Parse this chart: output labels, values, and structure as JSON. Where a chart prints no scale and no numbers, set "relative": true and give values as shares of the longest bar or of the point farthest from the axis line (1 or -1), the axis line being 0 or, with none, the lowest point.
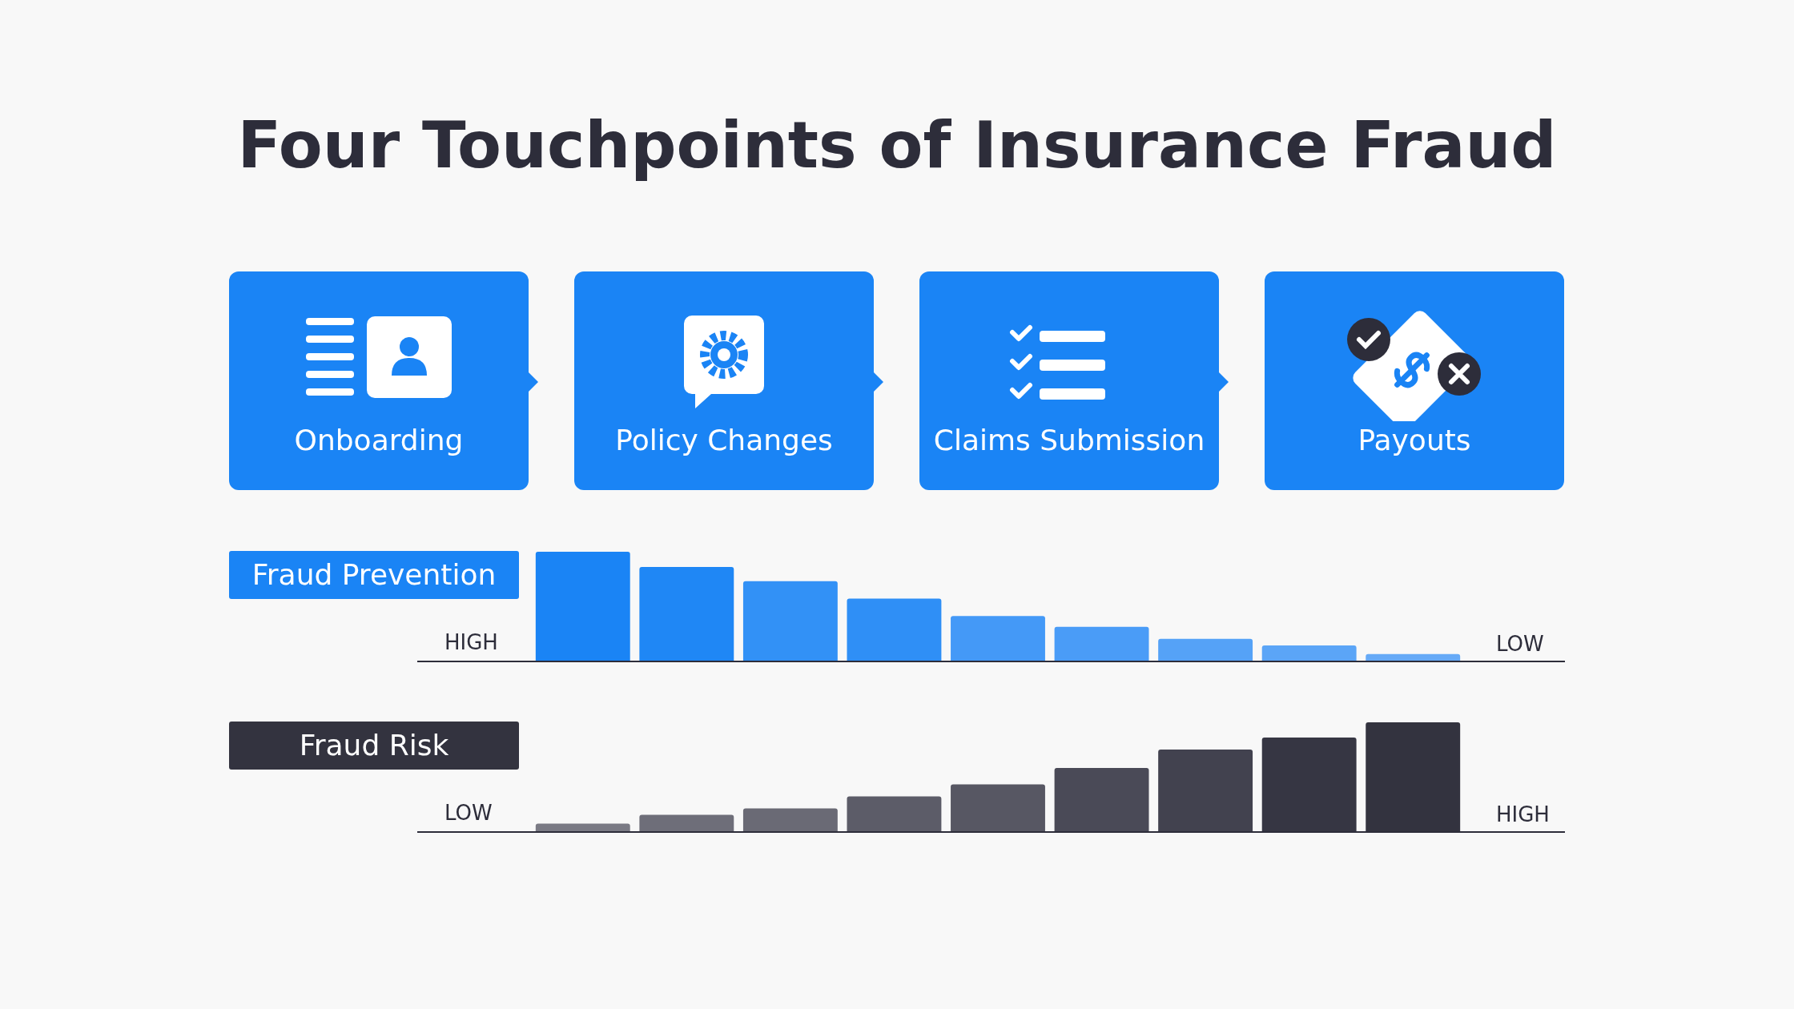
{
  "chart_data": [
    {
      "type": "other",
      "title": "Four Touchpoints of Insurance Fraud",
      "annotations": [
        "Onboarding",
        "Policy Changes",
        "Claims Submission",
        "Payouts"
      ]
    },
    {
      "type": "bar",
      "title": "Fraud Prevention",
      "relative": true,
      "categories": [
        null,
        null,
        null,
        null,
        null,
        null,
        null,
        null,
        null
      ],
      "values": [
        1,
        0.86,
        0.73,
        0.57,
        0.41,
        0.31,
        0.2,
        0.14,
        0.06
      ],
      "colors": [
        "#1a84f5",
        "#1f87f5",
        "#3291f6",
        "#2f8ff6",
        "#4499f7",
        "#4a9cf7",
        "#55a2f7",
        "#5ba5f7",
        "#66aaf7"
      ],
      "annotations": [
        "HIGH",
        "LOW"
      ]
    },
    {
      "type": "bar",
      "title": "Fraud Risk",
      "relative": true,
      "categories": [
        null,
        null,
        null,
        null,
        null,
        null,
        null,
        null,
        null
      ],
      "values": [
        0.07,
        0.15,
        0.21,
        0.32,
        0.43,
        0.58,
        0.75,
        0.86,
        1
      ],
      "colors": [
        "#7a7a84",
        "#6e6e79",
        "#6a6a75",
        "#5c5c68",
        "#575763",
        "#4a4a57",
        "#42424f",
        "#363643",
        "#33333f"
      ],
      "annotations": [
        "LOW",
        "HIGH"
      ]
    }
  ]
}
